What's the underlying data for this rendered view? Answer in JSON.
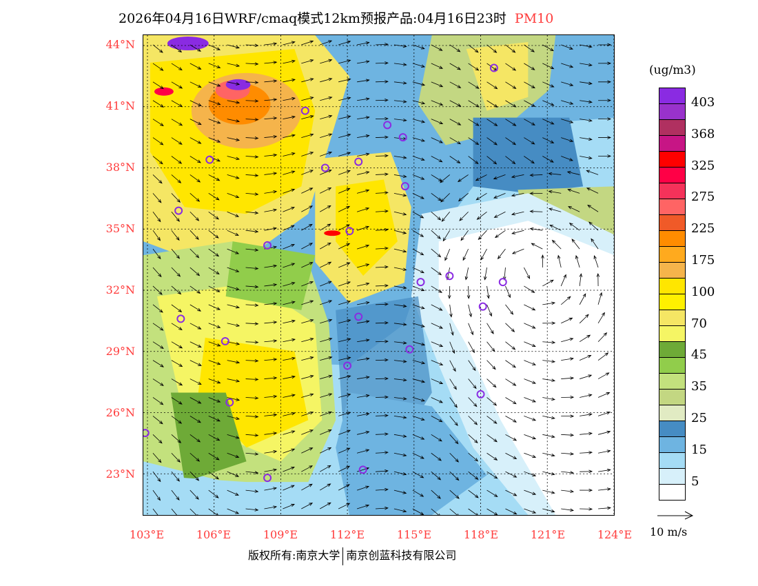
{
  "header": {
    "title": "2026年04月16日WRF/cmaq模式12km预报产品:04月16日23时",
    "variable": "PM10"
  },
  "map": {
    "lon_range": [
      102.8,
      124.0
    ],
    "lat_range": [
      21.0,
      44.5
    ],
    "lat_ticks": [
      "44°N",
      "41°N",
      "38°N",
      "35°N",
      "32°N",
      "29°N",
      "26°N",
      "23°N"
    ],
    "lat_values": [
      44,
      41,
      38,
      35,
      32,
      29,
      26,
      23
    ],
    "lon_ticks": [
      "103°E",
      "106°E",
      "109°E",
      "112°E",
      "115°E",
      "118°E",
      "121°E",
      "124°E"
    ],
    "lon_values": [
      103,
      106,
      109,
      112,
      115,
      118,
      121,
      124
    ],
    "city_markers": [
      [
        118.6,
        42.9
      ],
      [
        110.1,
        40.8
      ],
      [
        113.8,
        40.1
      ],
      [
        114.5,
        39.5
      ],
      [
        105.8,
        38.4
      ],
      [
        111.0,
        38.0
      ],
      [
        112.5,
        38.3
      ],
      [
        114.6,
        37.1
      ],
      [
        104.4,
        35.9
      ],
      [
        112.1,
        34.9
      ],
      [
        108.4,
        34.2
      ],
      [
        115.3,
        32.4
      ],
      [
        116.6,
        32.7
      ],
      [
        119.0,
        32.4
      ],
      [
        118.1,
        31.2
      ],
      [
        104.5,
        30.6
      ],
      [
        112.5,
        30.7
      ],
      [
        106.5,
        29.5
      ],
      [
        114.8,
        29.1
      ],
      [
        112.0,
        28.3
      ],
      [
        106.7,
        26.5
      ],
      [
        118.0,
        26.9
      ],
      [
        102.9,
        25.0
      ],
      [
        112.7,
        23.2
      ],
      [
        108.4,
        22.8
      ]
    ]
  },
  "colorbar": {
    "unit": "(ug/m3)",
    "colors": [
      "#8a2be2",
      "#9932cc",
      "#b03060",
      "#c71585",
      "#ff0000",
      "#ff0046",
      "#f5325a",
      "#ff6464",
      "#f05a28",
      "#ff8c00",
      "#ffaa1e",
      "#f5b44b",
      "#ffe600",
      "#fff000",
      "#f5e664",
      "#f5f564",
      "#6eaa37",
      "#91cd4b",
      "#c3e17d",
      "#c3d782",
      "#e1ebc3",
      "#468cc3",
      "#6eb4e1",
      "#a5dcf5",
      "#d7f0fa",
      "#ffffff"
    ],
    "labels": [
      "403",
      "368",
      "325",
      "275",
      "225",
      "175",
      "100",
      "70",
      "45",
      "35",
      "25",
      "15",
      "5"
    ]
  },
  "wind_reference": {
    "label": "10 m/s"
  },
  "footer": {
    "left": "版权所有:南京大学",
    "right": "南京创蓝科技有限公司"
  }
}
